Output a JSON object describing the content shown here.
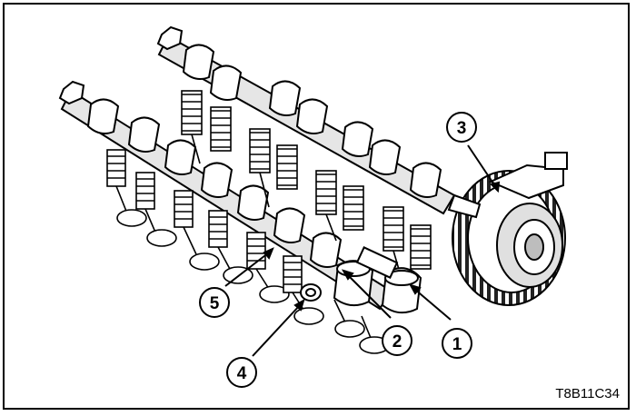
{
  "diagram": {
    "callouts": [
      {
        "id": "1",
        "label": "1"
      },
      {
        "id": "2",
        "label": "2"
      },
      {
        "id": "3",
        "label": "3"
      },
      {
        "id": "4",
        "label": "4"
      },
      {
        "id": "5",
        "label": "5"
      }
    ],
    "figure_code": "T8B11C34"
  },
  "colors": {
    "line": "#000000",
    "fill": "#ffffff",
    "shade": "#bdbdbd"
  }
}
